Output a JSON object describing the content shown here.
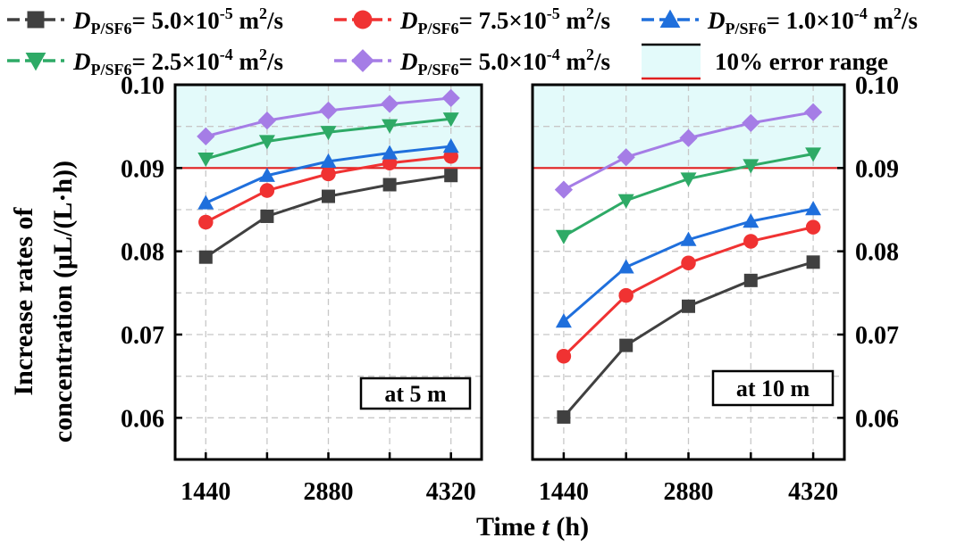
{
  "chart_data": [
    {
      "type": "line",
      "panel_label": "at 5 m",
      "x": [
        1440,
        2160,
        2880,
        3600,
        4320
      ],
      "xticks": [
        "1440",
        "2880",
        "4320"
      ],
      "xlim": [
        1080,
        4680
      ],
      "ylim": [
        0.055,
        0.1
      ],
      "yticks": [
        "0.06",
        "0.07",
        "0.08",
        "0.09",
        "0.10"
      ],
      "band": [
        0.09,
        0.1
      ],
      "series": [
        {
          "legend_index": 0,
          "values": [
            0.0793,
            0.0842,
            0.0866,
            0.088,
            0.0891
          ]
        },
        {
          "legend_index": 1,
          "values": [
            0.0835,
            0.0873,
            0.0893,
            0.0906,
            0.0914
          ]
        },
        {
          "legend_index": 2,
          "values": [
            0.0858,
            0.0891,
            0.0908,
            0.0918,
            0.0926
          ]
        },
        {
          "legend_index": 3,
          "values": [
            0.0911,
            0.0932,
            0.0943,
            0.0951,
            0.0959
          ]
        },
        {
          "legend_index": 4,
          "values": [
            0.0938,
            0.0957,
            0.0969,
            0.0977,
            0.0984
          ]
        }
      ]
    },
    {
      "type": "line",
      "panel_label": "at 10 m",
      "x": [
        1440,
        2160,
        2880,
        3600,
        4320
      ],
      "xticks": [
        "1440",
        "2880",
        "4320"
      ],
      "xlim": [
        1080,
        4680
      ],
      "ylim": [
        0.055,
        0.1
      ],
      "yticks": [
        "0.06",
        "0.07",
        "0.08",
        "0.09",
        "0.10"
      ],
      "band": [
        0.09,
        0.1
      ],
      "series": [
        {
          "legend_index": 0,
          "values": [
            0.0601,
            0.0687,
            0.0734,
            0.0765,
            0.0787
          ]
        },
        {
          "legend_index": 1,
          "values": [
            0.0674,
            0.0747,
            0.0786,
            0.0812,
            0.0829
          ]
        },
        {
          "legend_index": 2,
          "values": [
            0.0716,
            0.0781,
            0.0814,
            0.0836,
            0.0851
          ]
        },
        {
          "legend_index": 3,
          "values": [
            0.0818,
            0.0861,
            0.0887,
            0.0903,
            0.0917
          ]
        },
        {
          "legend_index": 4,
          "values": [
            0.0874,
            0.0913,
            0.0936,
            0.0954,
            0.0967
          ]
        }
      ]
    }
  ],
  "legend": [
    {
      "symbol": "D",
      "subscript": "P/SF6",
      "value": "= 5.0×10",
      "exponent": "-5",
      "unit": " m",
      "unit_exp": "2",
      "unit_tail": "/s",
      "color": "#404040",
      "marker": "square"
    },
    {
      "symbol": "D",
      "subscript": "P/SF6",
      "value": "= 7.5×10",
      "exponent": "-5",
      "unit": " m",
      "unit_exp": "2",
      "unit_tail": "/s",
      "color": "#f03232",
      "marker": "circle"
    },
    {
      "symbol": "D",
      "subscript": "P/SF6",
      "value": "= 1.0×10",
      "exponent": "-4",
      "unit": " m",
      "unit_exp": "2",
      "unit_tail": "/s",
      "color": "#1f6fdc",
      "marker": "triangle-up"
    },
    {
      "symbol": "D",
      "subscript": "P/SF6",
      "value": "= 2.5×10",
      "exponent": "-4",
      "unit": " m",
      "unit_exp": "2",
      "unit_tail": "/s",
      "color": "#2eaa66",
      "marker": "triangle-down"
    },
    {
      "symbol": "D",
      "subscript": "P/SF6",
      "value": "= 5.0×10",
      "exponent": "-4",
      "unit": " m",
      "unit_exp": "2",
      "unit_tail": "/s",
      "color": "#a57de6",
      "marker": "diamond"
    }
  ],
  "error_legend": {
    "label": "10% error range",
    "fill": "#e3fafa",
    "upper_line": "#000000",
    "lower_line": "#e02020"
  },
  "ylabel_line1": "Increase rates of",
  "ylabel_line2": "concentration (μL/(L·h))",
  "xlabel_main": "Time ",
  "xlabel_var": "t",
  "xlabel_unit": " (h)"
}
